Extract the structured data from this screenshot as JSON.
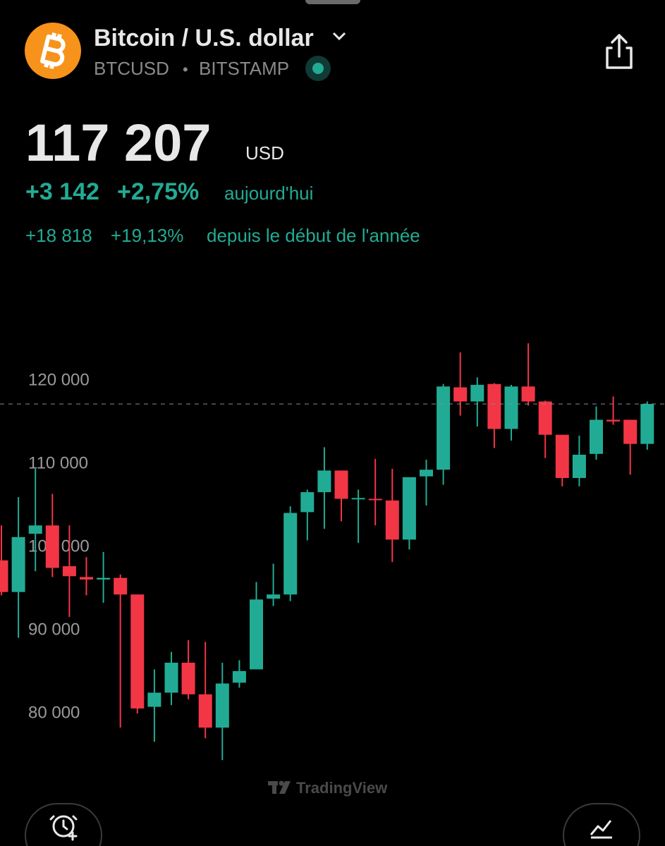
{
  "header": {
    "title": "Bitcoin / U.S. dollar",
    "symbol": "BTCUSD",
    "separator": "•",
    "exchange": "BITSTAMP"
  },
  "quote": {
    "price": "117 207",
    "currency": "USD",
    "day_change": "+3 142",
    "day_change_pct": "+2,75%",
    "day_label": "aujourd'hui",
    "ytd_change": "+18 818",
    "ytd_change_pct": "+19,13%",
    "ytd_label": "depuis le début de l'année"
  },
  "watermark": "TradingView",
  "chart_data": {
    "type": "candlestick",
    "up_color": "#22ab94",
    "down_color": "#f23645",
    "ylim": [
      72500,
      130200
    ],
    "yticks": [
      {
        "value": 80000,
        "label": "80 000"
      },
      {
        "value": 90000,
        "label": "90 000"
      },
      {
        "value": 100000,
        "label": "100 000"
      },
      {
        "value": 110000,
        "label": "110 000"
      },
      {
        "value": 120000,
        "label": "120 000"
      }
    ],
    "open": [
      98400,
      94600,
      101600,
      102600,
      97700,
      96400,
      96100,
      96300,
      94300,
      80800,
      82500,
      86100,
      82300,
      78300,
      83700,
      85300,
      93800,
      94300,
      104200,
      106600,
      109200,
      105800,
      105800,
      105600,
      100900,
      108500,
      109300,
      119200,
      117500,
      119600,
      114200,
      119300,
      117500,
      113500,
      108300,
      111200,
      115300,
      115300,
      112400
    ],
    "high": [
      102600,
      106000,
      109400,
      106400,
      102600,
      98800,
      99400,
      96700,
      94300,
      85300,
      87400,
      88800,
      88600,
      86100,
      86400,
      95800,
      98000,
      104900,
      106900,
      112000,
      109200,
      106900,
      110600,
      109400,
      108400,
      110500,
      119600,
      123400,
      120400,
      119700,
      119500,
      124500,
      117600,
      113500,
      113400,
      116900,
      118100,
      115300,
      117500
    ],
    "low": [
      94200,
      89100,
      97100,
      96400,
      91600,
      94200,
      93300,
      78300,
      80000,
      76600,
      81000,
      81700,
      77000,
      74400,
      83100,
      85300,
      92900,
      93500,
      100800,
      102200,
      103100,
      100500,
      102600,
      98200,
      99700,
      105000,
      107500,
      115800,
      114500,
      111900,
      112800,
      117000,
      110700,
      107300,
      107300,
      110500,
      114700,
      108700,
      111700
    ],
    "close": [
      94600,
      101200,
      102600,
      97500,
      96500,
      96100,
      96300,
      94300,
      80600,
      82500,
      86100,
      82300,
      78300,
      83600,
      85100,
      93700,
      94300,
      104100,
      106600,
      109200,
      105800,
      105900,
      105700,
      100900,
      108400,
      109300,
      119300,
      117500,
      119500,
      114200,
      119300,
      117500,
      113500,
      108300,
      111100,
      115300,
      115100,
      112400,
      117200
    ]
  }
}
